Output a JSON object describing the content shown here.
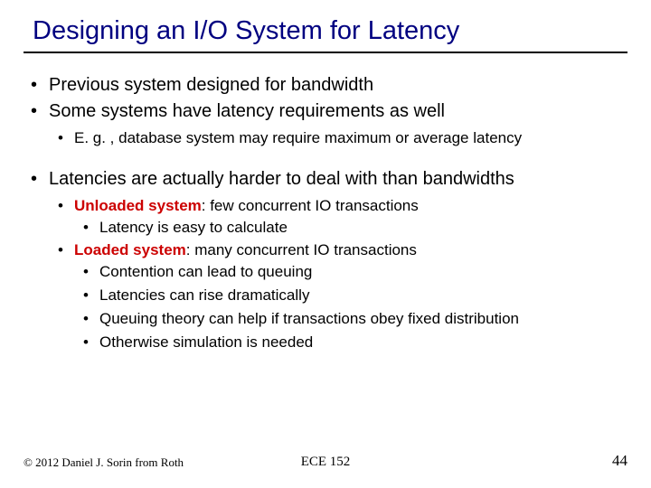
{
  "title": "Designing an I/O System for Latency",
  "colors": {
    "title": "#000080",
    "term": "#cc0000",
    "text": "#000000",
    "background": "#ffffff",
    "rule": "#000000"
  },
  "fontsizes": {
    "title": 29,
    "lvl1": 20,
    "lvl2": 17,
    "lvl3": 17,
    "copyright": 13,
    "course": 15,
    "pagenum": 17
  },
  "bullets": {
    "a": "Previous system designed for bandwidth",
    "b": "Some systems have latency requirements as well",
    "b1": "E. g. , database system may require maximum or average latency",
    "c": "Latencies are actually harder to deal with than bandwidths",
    "c1_term": "Unloaded system",
    "c1_rest": ": few concurrent IO transactions",
    "c1a": "Latency is easy to calculate",
    "c2_term": "Loaded system",
    "c2_rest": ": many concurrent IO transactions",
    "c2a": "Contention can lead to queuing",
    "c2b": "Latencies can rise dramatically",
    "c2c": "Queuing theory can help if transactions obey fixed distribution",
    "c2d": "Otherwise simulation is needed"
  },
  "footer": {
    "copyright": "© 2012 Daniel J. Sorin from Roth",
    "course": "ECE 152",
    "page": "44"
  }
}
